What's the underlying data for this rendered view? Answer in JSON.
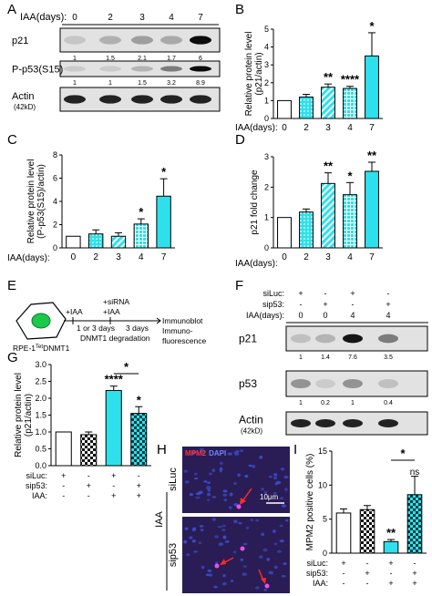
{
  "panels": {
    "A": {
      "letter": "A",
      "header_label": "IAA(days):",
      "days": [
        "0",
        "2",
        "3",
        "4",
        "7"
      ],
      "blots": [
        {
          "label": "p21",
          "values": [
            "1",
            "1.5",
            "2.1",
            "1.7",
            "6"
          ],
          "intensity": [
            0.12,
            0.22,
            0.3,
            0.25,
            0.95
          ]
        },
        {
          "label": "P-p53(S15)",
          "values": [
            "1",
            "1",
            "1.5",
            "3.2",
            "8.9"
          ],
          "intensity": [
            0.1,
            0.1,
            0.2,
            0.45,
            0.95
          ]
        },
        {
          "label": "Actin",
          "sublabel": "(42kD)",
          "values": [],
          "intensity": [
            0.85,
            0.85,
            0.85,
            0.85,
            0.85
          ]
        }
      ]
    },
    "B": {
      "letter": "B",
      "x_title": "IAA(days):"
    },
    "C": {
      "letter": "C",
      "x_title": "IAA(days):"
    },
    "D": {
      "letter": "D",
      "x_title": "IAA(days):"
    },
    "E": {
      "letter": "E",
      "cell_label": "RPE-1",
      "cell_label_sup": "Tet",
      "cell_label_tail": "DNMT1",
      "step1_top": "+IAA",
      "step1_bottom": "1 or 3 days",
      "step2_top1": "+siRNA",
      "step2_top2": "+IAA",
      "step2_bottom": "3 days",
      "degradation_label": "DNMT1 degradation",
      "readout1": "Immunoblot",
      "readout2": "Immuno-",
      "readout3": "fluorescence"
    },
    "F": {
      "letter": "F",
      "conditions": [
        {
          "label": "siLuc:",
          "values": [
            "+",
            "-",
            "+",
            "-"
          ]
        },
        {
          "label": "sip53:",
          "values": [
            "-",
            "+",
            "-",
            "+"
          ]
        },
        {
          "label": "IAA(days):",
          "values": [
            "0",
            "0",
            "4",
            "4"
          ]
        }
      ],
      "blots": [
        {
          "label": "p21",
          "values": [
            "1",
            "1.4",
            "7.6",
            "3.5"
          ],
          "intensity": [
            0.15,
            0.2,
            0.9,
            0.45
          ]
        },
        {
          "label": "p53",
          "values": [
            "1",
            "0.2",
            "1",
            "0.4"
          ],
          "intensity": [
            0.35,
            0.1,
            0.35,
            0.15
          ]
        },
        {
          "label": "Actin",
          "sublabel": "(42kD)",
          "values": [],
          "intensity": [
            0.85,
            0.85,
            0.85,
            0.85
          ]
        }
      ]
    },
    "G": {
      "letter": "G",
      "conditions": [
        {
          "label": "siLuc:",
          "values": [
            "+",
            "-",
            "+",
            "-"
          ]
        },
        {
          "label": "sip53:",
          "values": [
            "-",
            "+",
            "-",
            "+"
          ]
        },
        {
          "label": "IAA:",
          "values": [
            "-",
            "-",
            "+",
            "+"
          ]
        }
      ],
      "bracket_sig": "*"
    },
    "H": {
      "letter": "H",
      "stain_label_a": "MPM2",
      "stain_label_b": "DAPI",
      "row_labels": [
        "siLuc",
        "sip53"
      ],
      "side_label": "IAA",
      "scale_label": "10μm"
    },
    "I": {
      "letter": "I",
      "conditions": [
        {
          "label": "siLuc:",
          "values": [
            "+",
            "-",
            "+",
            "-"
          ]
        },
        {
          "label": "sip53:",
          "values": [
            "-",
            "+",
            "-",
            "+"
          ]
        },
        {
          "label": "IAA:",
          "values": [
            "-",
            "-",
            "+",
            "+"
          ]
        }
      ],
      "bracket_sig": "*",
      "bracket_ns": "ns"
    }
  },
  "colors": {
    "cyan": "#2ee0ec",
    "axis": "#000000",
    "blot_bg": "#e2e2e2",
    "micro_bg": "#2a1c55",
    "micro_dot": "#3a4fd0",
    "micro_red": "#ff2a2a"
  },
  "chart_data": [
    {
      "id": "B",
      "type": "bar",
      "categories": [
        "0",
        "2",
        "3",
        "4",
        "7"
      ],
      "values": [
        1.0,
        1.2,
        1.75,
        1.68,
        3.5
      ],
      "errors": [
        0.0,
        0.15,
        0.18,
        0.12,
        1.3
      ],
      "significance": [
        "",
        "",
        "**",
        "****",
        "*"
      ],
      "patterns": [
        "none",
        "dots",
        "stripe",
        "cross",
        "none"
      ],
      "ylabel": "Relative protein level (p21/actin)",
      "xlabel": "IAA(days):",
      "ylim": [
        0,
        5
      ],
      "yticks": [
        0,
        1,
        2,
        3,
        4,
        5
      ]
    },
    {
      "id": "C",
      "type": "bar",
      "categories": [
        "0",
        "2",
        "3",
        "4",
        "7"
      ],
      "values": [
        1.0,
        1.2,
        1.0,
        2.05,
        4.45
      ],
      "errors": [
        0.0,
        0.35,
        0.3,
        0.45,
        1.5
      ],
      "significance": [
        "",
        "",
        "",
        "*",
        "*"
      ],
      "patterns": [
        "none",
        "dots",
        "stripe",
        "cross",
        "none"
      ],
      "ylabel": "Relative protein level (P-p53(S15)/actin)",
      "xlabel": "IAA(days):",
      "ylim": [
        0,
        8
      ],
      "yticks": [
        0,
        2,
        4,
        6,
        8
      ]
    },
    {
      "id": "D",
      "type": "bar",
      "categories": [
        "0",
        "2",
        "3",
        "4",
        "7"
      ],
      "values": [
        1.0,
        1.18,
        2.12,
        1.75,
        2.52
      ],
      "errors": [
        0.0,
        0.1,
        0.35,
        0.4,
        0.3
      ],
      "significance": [
        "",
        "",
        "**",
        "*",
        "**"
      ],
      "patterns": [
        "none",
        "dots",
        "stripe",
        "cross",
        "none"
      ],
      "ylabel": "p21 fold change",
      "xlabel": "IAA(days):",
      "ylim": [
        0,
        3
      ],
      "yticks": [
        0,
        1,
        2,
        3
      ]
    },
    {
      "id": "G",
      "type": "bar",
      "categories": [
        "1",
        "2",
        "3",
        "4"
      ],
      "values": [
        1.0,
        0.92,
        2.23,
        1.55
      ],
      "errors": [
        0.0,
        0.08,
        0.13,
        0.2
      ],
      "significance": [
        "",
        "",
        "****",
        "*"
      ],
      "patterns": [
        "none",
        "check",
        "none",
        "check"
      ],
      "ylabel": "Relative protein level (p21/actin)",
      "ylim": [
        0,
        3
      ],
      "yticks": [
        0.0,
        0.5,
        1.0,
        1.5,
        2.0,
        2.5,
        3.0
      ]
    },
    {
      "id": "I",
      "type": "bar",
      "categories": [
        "1",
        "2",
        "3",
        "4"
      ],
      "values": [
        5.9,
        6.4,
        1.7,
        8.6
      ],
      "errors": [
        0.6,
        0.6,
        0.3,
        2.7
      ],
      "significance": [
        "",
        "",
        "**",
        ""
      ],
      "patterns": [
        "none",
        "check",
        "none",
        "check"
      ],
      "ylabel": "MPM2 positive cells (%)",
      "ylim": [
        0,
        15
      ],
      "yticks": [
        0,
        5,
        10,
        15
      ]
    }
  ]
}
